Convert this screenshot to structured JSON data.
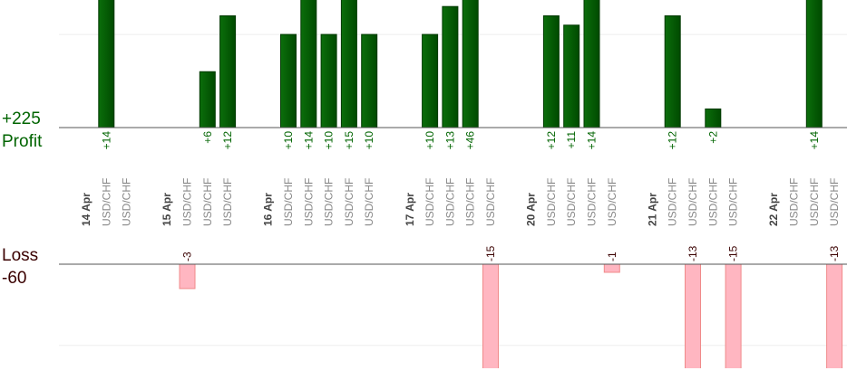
{
  "chart_data": {
    "type": "bar",
    "profit": {
      "label": "Profit",
      "total": "+225",
      "ylim": [
        0,
        13.7
      ],
      "grid": [
        10
      ],
      "color": "#006400",
      "label_color": "#006400"
    },
    "loss": {
      "label": "Loss",
      "total": "-60",
      "ylim": [
        0,
        -12.7
      ],
      "grid": [
        -10
      ],
      "color": "#ffb6c1",
      "label_color": "#3a0000"
    },
    "groups": [
      {
        "label": "14 Apr",
        "categories": [
          "USD/CHF",
          "USD/CHF"
        ],
        "values": [
          14,
          null
        ],
        "value_labels": [
          "+14",
          null
        ]
      },
      {
        "label": "15 Apr",
        "categories": [
          "USD/CHF",
          "USD/CHF",
          "USD/CHF"
        ],
        "values": [
          -3,
          6,
          12
        ],
        "value_labels": [
          "-3",
          "+6",
          "+12"
        ]
      },
      {
        "label": "16 Apr",
        "categories": [
          "USD/CHF",
          "USD/CHF",
          "USD/CHF",
          "USD/CHF",
          "USD/CHF"
        ],
        "values": [
          10,
          14,
          10,
          15,
          10
        ],
        "value_labels": [
          "+10",
          "+14",
          "+10",
          "+15",
          "+10"
        ]
      },
      {
        "label": "17 Apr",
        "categories": [
          "USD/CHF",
          "USD/CHF",
          "USD/CHF",
          "USD/CHF"
        ],
        "values": [
          10,
          13,
          46,
          -15
        ],
        "value_labels": [
          "+10",
          "+13",
          "+46",
          "-15"
        ]
      },
      {
        "label": "20 Apr",
        "categories": [
          "USD/CHF",
          "USD/CHF",
          "USD/CHF",
          "USD/CHF"
        ],
        "values": [
          12,
          11,
          14,
          -1
        ],
        "value_labels": [
          "+12",
          "+11",
          "+14",
          "-1"
        ]
      },
      {
        "label": "21 Apr",
        "categories": [
          "USD/CHF",
          "USD/CHF",
          "USD/CHF",
          "USD/CHF"
        ],
        "values": [
          12,
          -13,
          2,
          -15
        ],
        "value_labels": [
          "+12",
          "-13",
          "+2",
          "-15"
        ]
      },
      {
        "label": "22 Apr",
        "categories": [
          "USD/CHF",
          "USD/CHF",
          "USD/CHF"
        ],
        "values": [
          null,
          14,
          -13
        ],
        "value_labels": [
          null,
          "+14",
          "-13"
        ]
      }
    ]
  }
}
